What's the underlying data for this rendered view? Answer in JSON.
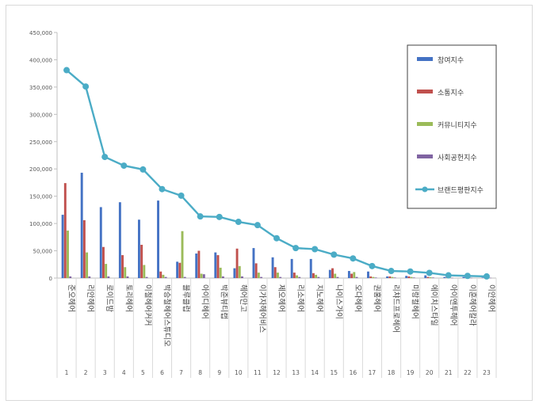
{
  "chart_data": {
    "type": "bar",
    "categories": [
      "1",
      "2",
      "3",
      "4",
      "5",
      "6",
      "7",
      "8",
      "9",
      "10",
      "11",
      "12",
      "13",
      "14",
      "15",
      "16",
      "17",
      "18",
      "19",
      "20",
      "21",
      "22",
      "23"
    ],
    "names": [
      "준오헤어",
      "리안헤어",
      "로이드밤",
      "토리헤어",
      "이철헤어커커",
      "박승철헤어스튜디오",
      "블루클럽",
      "아이디헤어",
      "박준뷰티랩",
      "헤어만고",
      "이가자헤어비스",
      "제오헤어",
      "리소헤어",
      "지노헤어",
      "나이스가이",
      "오다헤어",
      "권홍헤어",
      "리챠드프로헤어",
      "미랑컬헤어",
      "에이치스타일",
      "아이앤투헤어",
      "이훈헤어칼라",
      "이안헤어"
    ],
    "ylim": [
      0,
      450000
    ],
    "yticks": [
      "0",
      "50,000",
      "100,000",
      "150,000",
      "200,000",
      "250,000",
      "300,000",
      "350,000",
      "400,000",
      "450,000"
    ],
    "grid": false,
    "legend_position": "right",
    "series": [
      {
        "name": "참여지수",
        "type": "bar",
        "color": "#4472c4",
        "values": [
          116000,
          193000,
          130000,
          139000,
          107000,
          142000,
          30000,
          45000,
          47000,
          18000,
          55000,
          38000,
          35000,
          35000,
          15000,
          13000,
          12000,
          3000,
          4000,
          5000,
          2000,
          2000,
          1000
        ]
      },
      {
        "name": "소통지수",
        "type": "bar",
        "color": "#c0504d",
        "values": [
          174000,
          106000,
          57000,
          42000,
          61000,
          12000,
          28000,
          50000,
          42000,
          54000,
          27000,
          20000,
          10000,
          9000,
          18000,
          8000,
          3000,
          3000,
          3000,
          2000,
          1000,
          1000,
          1000
        ]
      },
      {
        "name": "커뮤니티지수",
        "type": "bar",
        "color": "#9bbb59",
        "values": [
          87000,
          47000,
          26000,
          20000,
          24000,
          6000,
          86000,
          8000,
          19000,
          22000,
          10000,
          10000,
          5000,
          6000,
          8000,
          11000,
          2000,
          2000,
          2000,
          1500,
          1000,
          500,
          500
        ]
      },
      {
        "name": "사회공헌지수",
        "type": "bar",
        "color": "#8064a2",
        "values": [
          3000,
          3000,
          3000,
          3000,
          2000,
          2000,
          2000,
          7000,
          3000,
          3000,
          2000,
          2000,
          2000,
          2000,
          2000,
          2000,
          1000,
          1000,
          1000,
          1000,
          500,
          500,
          500
        ]
      },
      {
        "name": "브랜드평판지수",
        "type": "line",
        "color": "#4bacc6",
        "values": [
          381000,
          351000,
          222000,
          206000,
          199000,
          163000,
          151000,
          113000,
          112000,
          103000,
          97000,
          73000,
          55000,
          53000,
          43000,
          36000,
          22000,
          13000,
          12000,
          9500,
          5000,
          4000,
          3000
        ]
      }
    ]
  }
}
